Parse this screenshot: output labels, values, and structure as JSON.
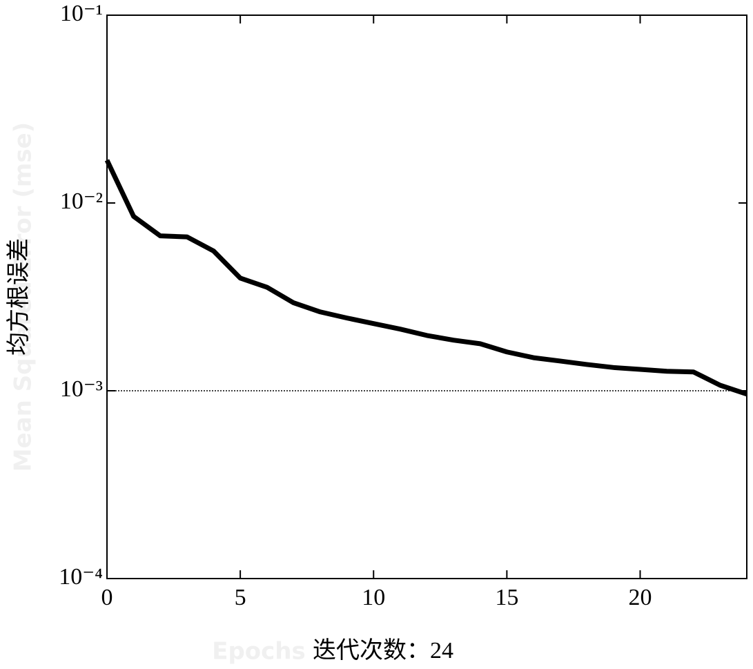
{
  "chart_data": {
    "type": "line",
    "log_y": true,
    "xlabel": "迭代次数：24",
    "ylabel": "均方根误差",
    "watermark_ylabel": "Mean Squared Error (mse)",
    "watermark_xlabel": "Epochs",
    "x": [
      0,
      1,
      2,
      3,
      4,
      5,
      6,
      7,
      8,
      9,
      10,
      11,
      12,
      13,
      14,
      15,
      16,
      17,
      18,
      19,
      20,
      21,
      22,
      23,
      24
    ],
    "series": [
      {
        "color": "#000000",
        "values": [
          0.0169,
          0.00848,
          0.00668,
          0.0066,
          0.00555,
          0.00398,
          0.00356,
          0.00294,
          0.00263,
          0.00244,
          0.00228,
          0.00213,
          0.00197,
          0.00186,
          0.00178,
          0.00161,
          0.0015,
          0.00144,
          0.00138,
          0.00133,
          0.0013,
          0.00127,
          0.00126,
          0.00107,
          0.00096
        ]
      }
    ],
    "goal": 0.001,
    "xlim": [
      0,
      24
    ],
    "xticks": [
      0,
      5,
      10,
      15,
      20
    ],
    "ylim": [
      0.0001,
      0.1
    ],
    "yticks": [
      {
        "value": 0.0001,
        "label": "10⁻⁴"
      },
      {
        "value": 0.001,
        "label": "10⁻³"
      },
      {
        "value": 0.01,
        "label": "10⁻²"
      },
      {
        "value": 0.1,
        "label": "10⁻¹"
      }
    ]
  }
}
